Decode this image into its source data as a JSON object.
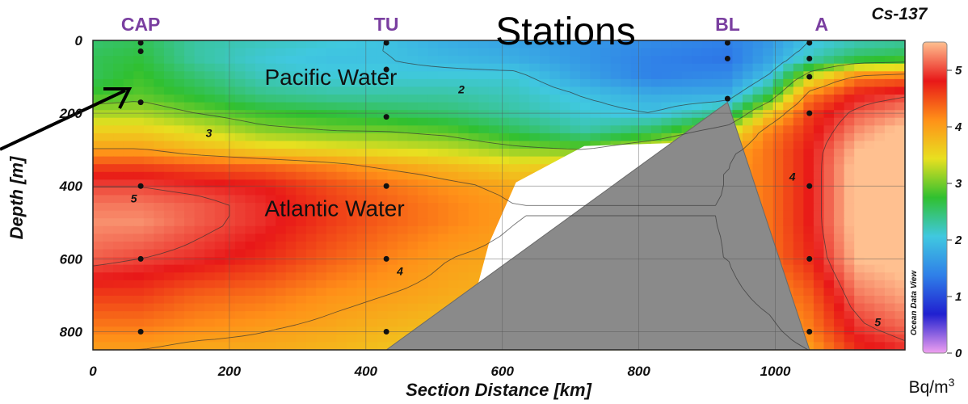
{
  "chart_data": {
    "type": "heatmap",
    "title": "Cs-137",
    "xlabel": "Section Distance [km]",
    "ylabel": "Depth [m]",
    "xlim": [
      0,
      1190
    ],
    "ylim": [
      850,
      0
    ],
    "x_ticks": [
      "0",
      "200",
      "400",
      "600",
      "800",
      "1000"
    ],
    "y_ticks": [
      "0",
      "200",
      "400",
      "600",
      "800"
    ],
    "colorbar": {
      "ticks": [
        "0",
        "1",
        "2",
        "3",
        "4",
        "5"
      ],
      "range": [
        0,
        5.5
      ],
      "unit": "Bq/m",
      "unit_superscript": "3",
      "credit": "Ocean Data View",
      "colors": [
        "#f0a0f0",
        "#2020d0",
        "#2f7fe8",
        "#40c8e0",
        "#30c030",
        "#e8e020",
        "#ff9018",
        "#e81818",
        "#ffc090"
      ]
    },
    "header_label": "Stations",
    "stations": [
      {
        "name": "CAP",
        "x_km": 70,
        "depths": [
          0,
          30,
          170,
          400,
          600,
          800
        ]
      },
      {
        "name": "TU",
        "x_km": 430,
        "depths": [
          0,
          80,
          210,
          400,
          600,
          800
        ]
      },
      {
        "name": "BL",
        "x_km": 930,
        "depths": [
          0,
          50,
          160
        ]
      },
      {
        "name": "A",
        "x_km": 1050,
        "depths": [
          0,
          50,
          100,
          200,
          400,
          600,
          800
        ]
      }
    ],
    "annotations": [
      {
        "text": "Pacific Water",
        "x_km": 370,
        "depth": 100
      },
      {
        "text": "Atlantic Water",
        "x_km": 370,
        "depth": 460
      }
    ],
    "contour_labels": [
      {
        "text": "2",
        "x_km": 540,
        "depth": 145
      },
      {
        "text": "3",
        "x_km": 170,
        "depth": 265
      },
      {
        "text": "5",
        "x_km": 60,
        "depth": 445
      },
      {
        "text": "4",
        "x_km": 450,
        "depth": 645
      },
      {
        "text": "4",
        "x_km": 1025,
        "depth": 385
      },
      {
        "text": "5",
        "x_km": 1150,
        "depth": 785
      }
    ],
    "field": {
      "x_km": [
        0,
        70,
        150,
        250,
        350,
        430,
        520,
        620,
        720,
        820,
        930,
        990,
        1050,
        1120,
        1190
      ],
      "depth_m": [
        0,
        50,
        100,
        150,
        200,
        250,
        300,
        350,
        400,
        450,
        500,
        600,
        700,
        800,
        850
      ],
      "values": [
        [
          2.5,
          2.6,
          2.3,
          2.2,
          2.1,
          2.0,
          1.8,
          1.7,
          1.6,
          1.5,
          1.4,
          1.6,
          2.0,
          2.2,
          2.3
        ],
        [
          2.6,
          2.7,
          2.3,
          2.1,
          2.0,
          2.0,
          1.9,
          1.8,
          1.6,
          1.4,
          1.3,
          1.7,
          2.2,
          2.6,
          2.7
        ],
        [
          2.6,
          2.8,
          2.5,
          2.2,
          2.1,
          2.1,
          2.1,
          2.1,
          1.7,
          1.4,
          1.5,
          2.0,
          3.3,
          4.2,
          4.3
        ],
        [
          2.8,
          2.9,
          2.7,
          2.4,
          2.3,
          2.3,
          2.3,
          2.2,
          2.0,
          1.8,
          1.8,
          2.6,
          4.2,
          4.8,
          5.0
        ],
        [
          3.2,
          3.2,
          3.0,
          2.8,
          2.7,
          2.6,
          2.5,
          2.3,
          2.1,
          2.0,
          2.4,
          3.6,
          4.6,
          5.1,
          5.3
        ],
        [
          3.6,
          3.6,
          3.4,
          3.1,
          3.0,
          3.0,
          2.9,
          2.6,
          2.3,
          2.6,
          3.3,
          4.2,
          4.7,
          5.3,
          5.6
        ],
        [
          4.0,
          4.0,
          3.8,
          3.6,
          3.5,
          3.4,
          3.3,
          3.1,
          3.0,
          3.4,
          3.9,
          4.3,
          4.8,
          5.5,
          5.6
        ],
        [
          4.6,
          4.6,
          4.5,
          4.4,
          4.2,
          4.0,
          3.8,
          3.6,
          3.7,
          3.9,
          4.0,
          4.3,
          4.8,
          5.6,
          5.6
        ],
        [
          5.0,
          5.0,
          4.9,
          4.8,
          4.5,
          4.3,
          4.1,
          3.9,
          3.9,
          3.9,
          4.0,
          4.3,
          4.8,
          5.6,
          5.6
        ],
        [
          5.2,
          5.2,
          5.1,
          4.9,
          4.6,
          4.4,
          4.2,
          4.0,
          4.0,
          4.0,
          4.0,
          4.3,
          4.8,
          5.6,
          5.6
        ],
        [
          5.3,
          5.3,
          5.1,
          4.9,
          4.6,
          4.4,
          4.2,
          4.0,
          4.0,
          4.0,
          4.0,
          4.3,
          4.8,
          5.6,
          5.6
        ],
        [
          5.1,
          5.0,
          4.9,
          4.7,
          4.4,
          4.2,
          4.0,
          3.9,
          3.9,
          3.9,
          4.0,
          4.3,
          4.7,
          5.5,
          5.6
        ],
        [
          4.6,
          4.6,
          4.4,
          4.3,
          4.1,
          4.0,
          3.9,
          3.8,
          3.8,
          3.8,
          3.9,
          4.1,
          4.4,
          5.2,
          5.4
        ],
        [
          4.2,
          4.2,
          4.1,
          4.0,
          3.9,
          3.8,
          3.7,
          3.7,
          3.7,
          3.7,
          3.8,
          3.9,
          4.2,
          4.9,
          5.1
        ],
        [
          4.0,
          4.0,
          3.9,
          3.9,
          3.8,
          3.7,
          3.6,
          3.6,
          3.6,
          3.6,
          3.7,
          3.8,
          4.0,
          4.7,
          4.9
        ]
      ]
    },
    "no_data_region": [
      [
        560,
        700
      ],
      [
        580,
        560
      ],
      [
        620,
        390
      ],
      [
        720,
        290
      ],
      [
        880,
        280
      ],
      [
        880,
        300
      ],
      [
        620,
        630
      ],
      [
        560,
        700
      ]
    ],
    "topography": [
      [
        430,
        850
      ],
      [
        930,
        170
      ],
      [
        1050,
        850
      ]
    ],
    "grid": true,
    "legend": "right"
  }
}
